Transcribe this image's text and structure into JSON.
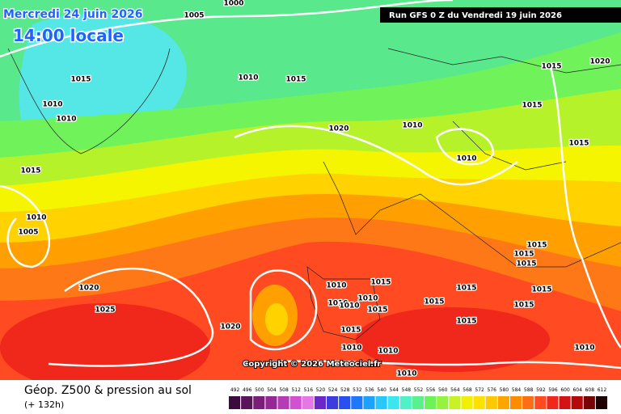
{
  "header": {
    "date": "Mercredi 24 juin 2026",
    "time": "14:00 locale",
    "run": "Run GFS 0 Z du Vendredi 19 juin 2026"
  },
  "map": {
    "copyright": "Copyright © 2026 Meteociel.fr",
    "isobar_labels": [
      "1000",
      "1005",
      "1015",
      "1010",
      "1015",
      "1010",
      "1010",
      "1015",
      "1020",
      "1015",
      "1020",
      "1010",
      "1015",
      "1010",
      "1015",
      "1010",
      "1005",
      "1015",
      "1015",
      "1015",
      "1020",
      "1010",
      "1015",
      "1015",
      "1015",
      "1025",
      "1010",
      "1015",
      "1015",
      "1010",
      "1010",
      "1015",
      "1015",
      "1020",
      "1015",
      "1010",
      "1010",
      "1010",
      "1010"
    ]
  },
  "footer": {
    "title": "Géop. Z500 & pression au sol",
    "lead": "(+ 132h)",
    "scale": [
      "492",
      "496",
      "500",
      "504",
      "508",
      "512",
      "516",
      "520",
      "524",
      "528",
      "532",
      "536",
      "540",
      "544",
      "548",
      "552",
      "556",
      "560",
      "564",
      "568",
      "572",
      "576",
      "580",
      "584",
      "588",
      "592",
      "596",
      "600",
      "604",
      "608",
      "612"
    ]
  }
}
